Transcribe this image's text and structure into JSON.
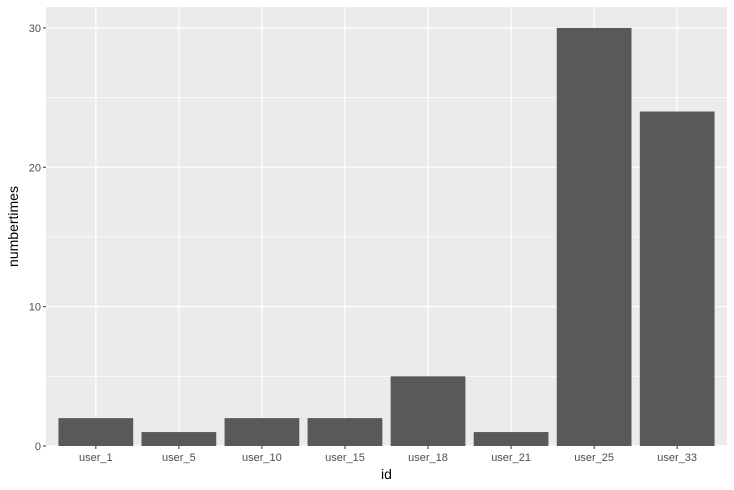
{
  "chart_data": {
    "type": "bar",
    "title": "",
    "xlabel": "id",
    "ylabel": "numbertimes",
    "categories": [
      "user_1",
      "user_5",
      "user_10",
      "user_15",
      "user_18",
      "user_21",
      "user_25",
      "user_33"
    ],
    "values": [
      2,
      1,
      2,
      2,
      5,
      1,
      30,
      24
    ],
    "ylim": [
      0,
      31.5
    ],
    "yticks": [
      0,
      10,
      20,
      30
    ],
    "ytick_labels": [
      "0",
      "10",
      "20",
      "30"
    ],
    "grid": true,
    "legend": "none",
    "colors": {
      "panel_background": "#ebebeb",
      "grid_major": "#ffffff",
      "bar_fill": "#595959",
      "tick_text": "#4d4d4d",
      "tick_mark": "#333333",
      "title_text": "#000000"
    }
  }
}
